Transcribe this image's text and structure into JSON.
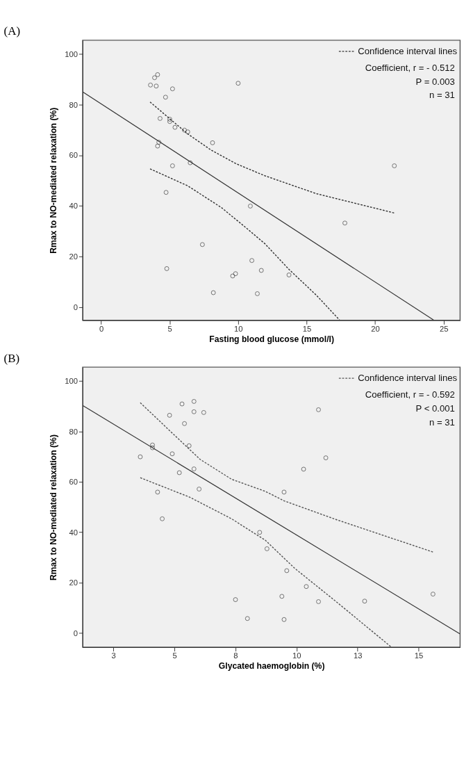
{
  "chart_data": [
    {
      "type": "scatter",
      "title": "(A)",
      "xlabel": "Fasting blood glucose (mmol/l)",
      "ylabel": "Rmax to NO-mediated relaxation (%)",
      "xlim": [
        -1.35,
        26.2
      ],
      "ylim": [
        -5.2,
        105.4
      ],
      "xticks": [
        0,
        5,
        10,
        15,
        20,
        25
      ],
      "yticks": [
        0,
        20,
        40,
        60,
        80,
        100
      ],
      "grid": false,
      "legend": "top right",
      "annotations": [
        "Coefficient, r = - 0.512",
        "P = 0.003",
        "n = 31"
      ],
      "series": [
        {
          "marker": "circle",
          "color": "#333333",
          "x": [
            3.6,
            3.9,
            4.12,
            4.02,
            5.21,
            4.7,
            4.3,
            5.01,
            5.01,
            5.39,
            6.08,
            6.32,
            8.13,
            4.21,
            4.12,
            6.5,
            5.21,
            4.74,
            10.0,
            10.89,
            7.39,
            4.79,
            11.0,
            9.6,
            9.81,
            11.69,
            8.19,
            11.4,
            21.4,
            17.79,
            13.71
          ],
          "values": [
            87.7,
            90.6,
            91.8,
            87.3,
            86.2,
            82.9,
            74.5,
            74.2,
            73.3,
            71.0,
            69.9,
            69.2,
            64.9,
            65.1,
            63.6,
            57.0,
            55.8,
            45.3,
            88.4,
            39.9,
            24.7,
            15.2,
            18.4,
            12.3,
            13.2,
            14.5,
            5.7,
            5.3,
            55.8,
            33.2,
            12.7
          ]
        },
        {
          "type": "line",
          "color": "#333333",
          "line_style": "solid",
          "x": [
            -1.34,
            24.26
          ],
          "values": [
            85.0,
            -5.1
          ]
        },
        {
          "type": "line",
          "name": "Confidence interval lines",
          "color": "#333333",
          "line_style": "dashed",
          "x": [
            3.57,
            6.32,
            8.0,
            9.86,
            11.94,
            15.71,
            21.45
          ],
          "values": [
            81.0,
            68.4,
            62.1,
            56.6,
            51.9,
            44.8,
            37.1
          ]
        },
        {
          "type": "line",
          "color": "#333333",
          "line_style": "dashed",
          "x": [
            3.57,
            6.32,
            8.78,
            10.47,
            11.94,
            13.71,
            15.71,
            17.4
          ],
          "values": [
            54.6,
            47.9,
            39.3,
            31.8,
            25.1,
            14.9,
            4.7,
            -5.1
          ]
        }
      ]
    },
    {
      "type": "scatter",
      "title": "(B)",
      "xlabel": "Glycated haemoglobin (%)",
      "ylabel": "Rmax to NO-mediated relaxation (%)",
      "xlim": [
        1.24,
        16.7
      ],
      "ylim": [
        -5.7,
        105.5
      ],
      "xticks": [
        {
          "value": 2.5,
          "label": "3"
        },
        5,
        {
          "value": 7.5,
          "label": "8"
        },
        10,
        {
          "value": 12.5,
          "label": "13"
        },
        15
      ],
      "yticks": [
        0,
        20,
        40,
        60,
        80,
        100
      ],
      "grid": false,
      "legend": "top right",
      "annotations": [
        "Coefficient, r = - 0.592",
        "P < 0.001",
        "n = 31"
      ],
      "series": [
        {
          "marker": "circle",
          "color": "#333333",
          "x": [
            3.6,
            4.1,
            4.1,
            4.31,
            4.5,
            4.8,
            4.91,
            5.2,
            5.31,
            5.41,
            5.6,
            5.8,
            5.8,
            5.8,
            6.01,
            6.2,
            7.5,
            7.99,
            8.49,
            8.79,
            10.9,
            11.2,
            10.29,
            9.49,
            9.6,
            10.4,
            9.4,
            10.9,
            9.49,
            12.79,
            15.59
          ],
          "values": [
            69.9,
            74.6,
            73.5,
            55.9,
            45.3,
            86.4,
            71.1,
            63.6,
            90.9,
            83.1,
            74.3,
            91.9,
            87.8,
            65.1,
            57.1,
            87.5,
            13.2,
            5.7,
            39.9,
            33.4,
            88.6,
            69.5,
            65.0,
            55.9,
            24.7,
            18.4,
            14.5,
            12.4,
            5.3,
            12.6,
            15.4
          ]
        },
        {
          "type": "line",
          "color": "#333333",
          "line_style": "solid",
          "x": [
            1.24,
            16.69
          ],
          "values": [
            90.3,
            -0.4
          ]
        },
        {
          "type": "line",
          "name": "Confidence interval lines",
          "color": "#555555",
          "line_style": "dashed",
          "x": [
            3.6,
            4.76,
            6.05,
            7.34,
            8.72,
            9.5,
            11.65,
            15.59
          ],
          "values": [
            91.4,
            80.7,
            68.9,
            61.0,
            56.2,
            52.4,
            44.9,
            32.1
          ]
        },
        {
          "type": "line",
          "color": "#555555",
          "line_style": "dashed",
          "x": [
            3.6,
            5.62,
            7.34,
            8.72,
            9.93,
            11.65,
            13.89
          ],
          "values": [
            61.6,
            53.9,
            45.3,
            36.8,
            25.6,
            12.2,
            -5.7
          ]
        }
      ]
    }
  ]
}
